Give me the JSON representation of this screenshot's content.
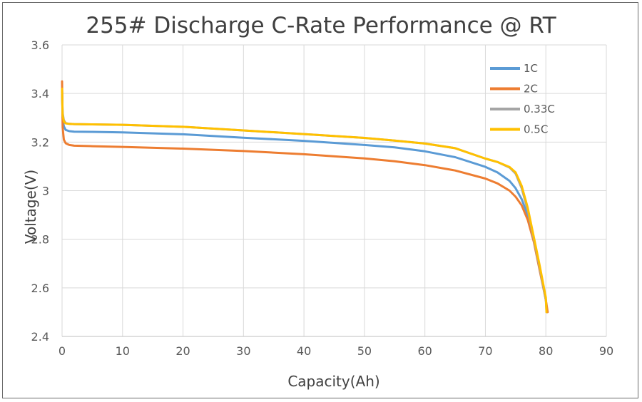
{
  "chart_data": {
    "type": "line",
    "title": "255# Discharge C-Rate Performance @ RT",
    "xlabel": "Capacity(Ah)",
    "ylabel": "Voltage(V)",
    "xlim": [
      0,
      90
    ],
    "ylim": [
      2.4,
      3.6
    ],
    "x_ticks": [
      "0",
      "10",
      "20",
      "30",
      "40",
      "50",
      "60",
      "70",
      "80",
      "90"
    ],
    "y_ticks": [
      "2.4",
      "2.6",
      "2.8",
      "3",
      "3.2",
      "3.4",
      "3.6"
    ],
    "grid": true,
    "legend_position": "top-right",
    "series": [
      {
        "name": "1C",
        "color": "#5b9bd5",
        "x": [
          0,
          0.1,
          0.3,
          0.6,
          1.2,
          2,
          5,
          10,
          20,
          30,
          40,
          50,
          55,
          60,
          65,
          70,
          72,
          74,
          75,
          76,
          77,
          78,
          79,
          80,
          80.2
        ],
        "y": [
          3.42,
          3.3,
          3.265,
          3.25,
          3.245,
          3.243,
          3.242,
          3.24,
          3.232,
          3.218,
          3.205,
          3.188,
          3.178,
          3.162,
          3.138,
          3.098,
          3.075,
          3.04,
          3.01,
          2.965,
          2.9,
          2.8,
          2.68,
          2.55,
          2.5
        ]
      },
      {
        "name": "2C",
        "color": "#ed7d31",
        "x": [
          0,
          0.1,
          0.3,
          0.6,
          1.2,
          2,
          5,
          10,
          20,
          30,
          40,
          50,
          55,
          60,
          65,
          70,
          72,
          74,
          75,
          76,
          77,
          78,
          79,
          80,
          80.3
        ],
        "y": [
          3.45,
          3.26,
          3.21,
          3.195,
          3.188,
          3.185,
          3.183,
          3.18,
          3.173,
          3.163,
          3.15,
          3.133,
          3.121,
          3.105,
          3.083,
          3.05,
          3.03,
          3.0,
          2.975,
          2.94,
          2.88,
          2.79,
          2.67,
          2.55,
          2.5
        ]
      },
      {
        "name": "0.33C",
        "color": "#a5a5a5",
        "x": [
          0,
          0.1,
          0.3,
          0.6,
          1.2,
          2,
          5,
          10,
          20,
          30,
          40,
          50,
          55,
          60,
          65,
          70,
          72,
          74,
          75,
          76,
          77,
          78,
          79,
          80,
          80.1
        ],
        "y": [
          3.4,
          3.32,
          3.29,
          3.278,
          3.275,
          3.274,
          3.273,
          3.271,
          3.263,
          3.248,
          3.233,
          3.217,
          3.206,
          3.194,
          3.175,
          3.132,
          3.118,
          3.095,
          3.07,
          3.01,
          2.92,
          2.8,
          2.68,
          2.55,
          2.5
        ]
      },
      {
        "name": "0.5C",
        "color": "#ffc000",
        "x": [
          0,
          0.1,
          0.3,
          0.6,
          1.2,
          2,
          5,
          10,
          20,
          30,
          40,
          50,
          55,
          60,
          65,
          70,
          72,
          74,
          75,
          76,
          77,
          78,
          79,
          80,
          80.1
        ],
        "y": [
          3.42,
          3.31,
          3.285,
          3.277,
          3.275,
          3.274,
          3.273,
          3.271,
          3.263,
          3.248,
          3.233,
          3.217,
          3.206,
          3.194,
          3.175,
          3.132,
          3.118,
          3.097,
          3.075,
          3.02,
          2.93,
          2.81,
          2.69,
          2.56,
          2.5
        ]
      }
    ]
  }
}
